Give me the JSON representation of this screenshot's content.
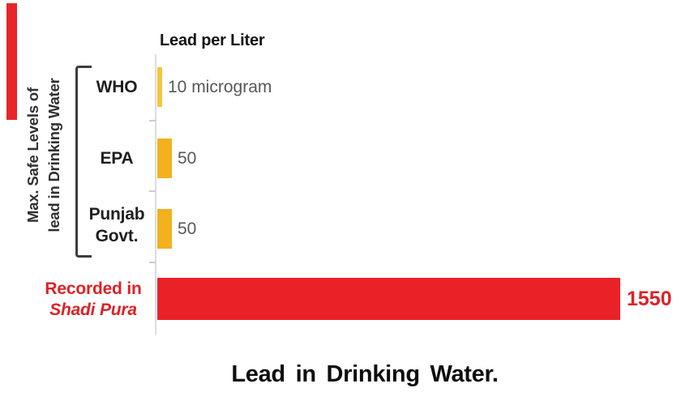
{
  "page": {
    "background": "#ffffff"
  },
  "decor": {
    "left_stripe_color": "#E8252A"
  },
  "chart": {
    "axis_header": "Lead per Liter",
    "title": "Lead in Drinking Water.",
    "side_label_line1": "Max. Safe Levels of",
    "side_label_line2": "lead in Drinking Water",
    "rows": [
      {
        "label": "WHO",
        "label2": "",
        "value": 10,
        "value_label": "10 microgram",
        "color": "#F5C53C"
      },
      {
        "label": "EPA",
        "label2": "",
        "value": 50,
        "value_label": "50",
        "color": "#F2B11E"
      },
      {
        "label": "Punjab",
        "label2": "Govt.",
        "value": 50,
        "value_label": "50",
        "color": "#F2B11E"
      },
      {
        "label": "Recorded in",
        "label2": "Shadi Pura",
        "value": 1550,
        "value_label": "1550",
        "color": "#EA2127"
      }
    ]
  },
  "chart_data": {
    "type": "bar",
    "orientation": "horizontal",
    "categories": [
      "WHO",
      "EPA",
      "Punjab Govt.",
      "Recorded in Shadi Pura"
    ],
    "values": [
      10,
      50,
      50,
      1550
    ],
    "value_labels": [
      "10 microgram",
      "50",
      "50",
      "1550"
    ],
    "unit": "microgram per liter",
    "title": "Lead in Drinking Water.",
    "axis_header": "Lead per Liter",
    "group_annotation": "Max. Safe Levels of lead in Drinking Water (brackets WHO, EPA, Punjab Govt.)",
    "xlim": [
      0,
      1600
    ],
    "grid": false,
    "legend": false,
    "bar_colors": [
      "#F5C53C",
      "#F2B11E",
      "#F2B11E",
      "#EA2127"
    ],
    "label_colors": [
      "#1f1f1f",
      "#1f1f1f",
      "#1f1f1f",
      "#DC2227"
    ],
    "accent_red": "#EA2127",
    "accent_yellow": "#F2B11E"
  }
}
